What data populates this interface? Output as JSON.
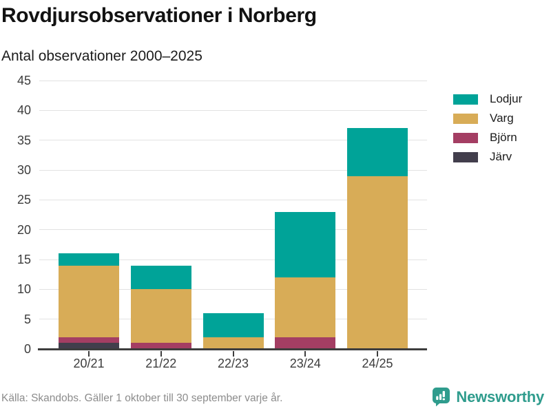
{
  "title": "Rovdjursobservationer i Norberg",
  "subtitle": "Antal observationer 2000–2025",
  "footer": {
    "source": "Källa: Skandobs. Gäller 1 oktober till 30 september varje år.",
    "brand": "Newsworthy"
  },
  "colors": {
    "lodjur": "#00a398",
    "varg": "#d8ac57",
    "bjorn": "#a43e63",
    "jarv": "#423e4c",
    "brand_teal": "#2f9c8d",
    "gridline": "#e2e2e2",
    "axis": "#3d3d3d"
  },
  "chart_data": {
    "type": "bar",
    "subtype": "stacked",
    "title": "Rovdjursobservationer i Norberg",
    "subtitle_axis_label": "Antal observationer 2000–2025",
    "categories": [
      "20/21",
      "21/22",
      "22/23",
      "23/24",
      "24/25"
    ],
    "series": [
      {
        "name": "Järv",
        "color": "#423e4c",
        "values": [
          1,
          0,
          0,
          0,
          0
        ]
      },
      {
        "name": "Björn",
        "color": "#a43e63",
        "values": [
          1,
          1,
          0,
          2,
          0
        ]
      },
      {
        "name": "Varg",
        "color": "#d8ac57",
        "values": [
          12,
          9,
          2,
          10,
          29
        ]
      },
      {
        "name": "Lodjur",
        "color": "#00a398",
        "values": [
          2,
          4,
          4,
          11,
          8
        ]
      }
    ],
    "totals": [
      16,
      14,
      6,
      23,
      37
    ],
    "ylim": [
      0,
      45
    ],
    "yticks": [
      0,
      5,
      10,
      15,
      20,
      25,
      30,
      35,
      40,
      45
    ],
    "grid": true,
    "legend_position": "right",
    "legend": [
      {
        "label": "Lodjur",
        "color": "#00a398"
      },
      {
        "label": "Varg",
        "color": "#d8ac57"
      },
      {
        "label": "Björn",
        "color": "#a43e63"
      },
      {
        "label": "Järv",
        "color": "#423e4c"
      }
    ]
  }
}
